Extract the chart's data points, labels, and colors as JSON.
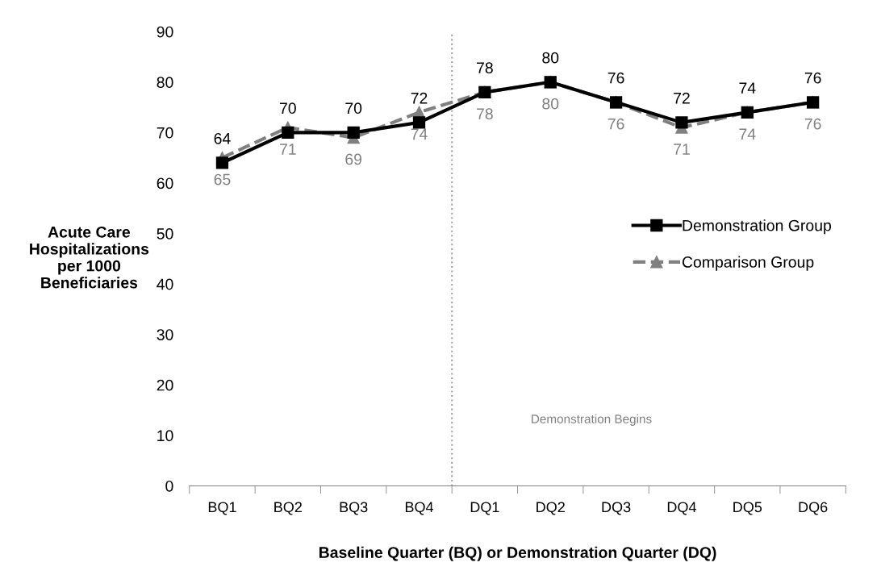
{
  "chart_data": {
    "type": "line",
    "xlabel": "Baseline Quarter (BQ) or Demonstration Quarter (DQ)",
    "ylabel": "Acute Care\nHospitalizations\nper 1000\nBeneficiaries",
    "categories": [
      "BQ1",
      "BQ2",
      "BQ3",
      "BQ4",
      "DQ1",
      "DQ2",
      "DQ3",
      "DQ4",
      "DQ5",
      "DQ6"
    ],
    "series": [
      {
        "name": "Demonstration Group",
        "color": "#000000",
        "marker": "square",
        "line_style": "solid",
        "values": [
          64,
          70,
          70,
          72,
          78,
          80,
          76,
          72,
          74,
          76
        ]
      },
      {
        "name": "Comparison Group",
        "color": "#808080",
        "marker": "triangle",
        "line_style": "dashed",
        "values": [
          65,
          71,
          69,
          74,
          78,
          80,
          76,
          71,
          74,
          76
        ]
      }
    ],
    "ylim": [
      0,
      90
    ],
    "yticks": [
      0,
      10,
      20,
      30,
      40,
      50,
      60,
      70,
      80,
      90
    ],
    "annotations": [
      "Demonstration Begins"
    ],
    "data_labels": true,
    "grid": false,
    "legend": "right"
  }
}
